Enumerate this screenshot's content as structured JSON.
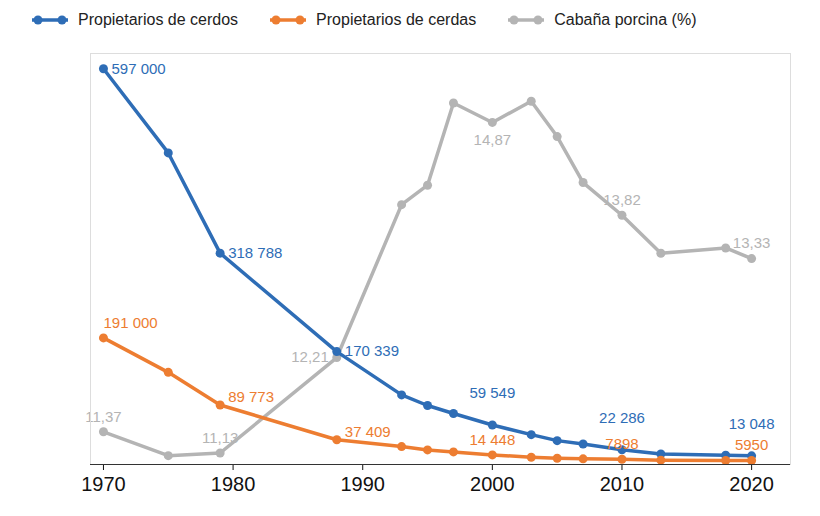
{
  "chart_data": {
    "type": "line",
    "x": [
      1970,
      1975,
      1979,
      1988,
      1993,
      1995,
      1997,
      2000,
      2003,
      2005,
      2007,
      2010,
      2013,
      2018,
      2020
    ],
    "xlim": [
      1969,
      2023
    ],
    "xticks": [
      1970,
      1980,
      1990,
      2000,
      2010,
      2020
    ],
    "ylim": [
      0,
      620000
    ],
    "yticks": [],
    "y2lim": [
      11,
      15.65
    ],
    "y2ticks": [],
    "tick_labels": "x",
    "data_labels": true,
    "legend": "top",
    "series": [
      {
        "name": "Propietarios de cerdos",
        "color": "#2e6db6",
        "marker": "circle",
        "values": [
          597000,
          470000,
          318788,
          170339,
          105000,
          89000,
          77000,
          59549,
          45000,
          36000,
          31000,
          22286,
          16000,
          14000,
          13048
        ],
        "value_labels": [
          "597 000",
          null,
          "318 788",
          "170 339",
          null,
          null,
          null,
          "59 549",
          null,
          null,
          null,
          "22 286",
          null,
          null,
          "13 048"
        ]
      },
      {
        "name": "Propietarios de cerdas",
        "color": "#ed7d31",
        "marker": "circle",
        "values": [
          191000,
          139000,
          89773,
          37409,
          27000,
          22000,
          19000,
          14448,
          11000,
          9500,
          8500,
          7898,
          6500,
          6000,
          5950
        ],
        "value_labels": [
          "191 000",
          null,
          "89 773",
          "37 409",
          null,
          null,
          null,
          "14 448",
          null,
          null,
          null,
          "7898",
          null,
          null,
          "5950"
        ]
      },
      {
        "name": "Cabaña porcina (%)",
        "color": "#b4b4b4",
        "marker": "circle",
        "axis": "y2",
        "values": [
          11.37,
          11.1,
          11.13,
          12.21,
          13.94,
          14.16,
          15.09,
          14.87,
          15.11,
          14.71,
          14.19,
          13.82,
          13.39,
          13.45,
          13.33
        ],
        "value_labels": [
          "11,37",
          null,
          "11,13",
          "12,21",
          null,
          null,
          null,
          "14,87",
          null,
          null,
          null,
          "13,82",
          null,
          null,
          "13,33"
        ]
      }
    ]
  }
}
